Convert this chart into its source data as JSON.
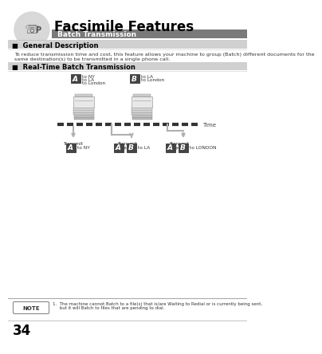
{
  "bg_color": "#ffffff",
  "page_number": "34",
  "title": "Facsimile Features",
  "subtitle": "Batch Transmission",
  "subtitle_bg": "#7a7a7a",
  "subtitle_text_color": "#ffffff",
  "section1_header": "■  General Description",
  "section1_text1": "To reduce transmission time and cost, this feature allows your machine to group (Batch) different documents for the",
  "section1_text2": "same destination(s) to be transmitted in a single phone call.",
  "section2_header": "■  Real-Time Batch Transmission",
  "note_label": "NOTE",
  "note_text1": "1.  The machine cannot Batch to a file(s) that is/are Waiting to Redial or is currently being sent,",
  "note_text2": "     but it will Batch to files that are pending to dial.",
  "divider_color": "#aaaaaa",
  "section_header_bg": "#d0d0d0",
  "label_bg": "#444444",
  "label_text_color": "#ffffff",
  "timebar_color": "#333333",
  "arrow_color": "#999999",
  "machine_color1": "#e0e0e0",
  "machine_color2": "#c8c8c8",
  "machine_color3": "#b0b0b0"
}
